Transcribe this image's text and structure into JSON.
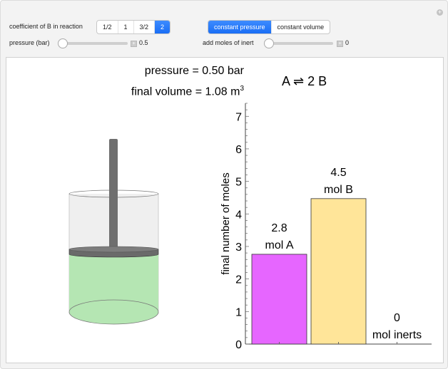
{
  "controls": {
    "coefficient_label": "coefficient of B in reaction",
    "coefficient_options": [
      "1/2",
      "1",
      "3/2",
      "2"
    ],
    "coefficient_selected": "2",
    "mode_options": [
      "constant pressure",
      "constant volume"
    ],
    "mode_selected": "constant pressure",
    "pressure_label": "pressure (bar)",
    "pressure_value": "0.5",
    "pressure_fraction": 0,
    "inert_label": "add moles of inert",
    "inert_value": "0",
    "inert_fraction": 0
  },
  "display": {
    "pressure_text": "pressure = 0.50 bar",
    "volume_text": "final volume = 1.08 m",
    "volume_exp": "3",
    "reaction": "A ⇌ 2 B"
  },
  "colors": {
    "accent": "#1a6ef5",
    "gas": "#b5e6b3",
    "barA": "#e666ff",
    "barB": "#ffe599"
  },
  "chart_data": {
    "type": "bar",
    "ylabel": "final number of moles",
    "ylim": [
      0,
      7.4
    ],
    "yticks": [
      "0",
      "1",
      "2",
      "3",
      "4",
      "5",
      "6",
      "7"
    ],
    "bars": [
      {
        "value": 2.76,
        "label_value": "2.8",
        "label_name": "mol A",
        "color": "#e666ff"
      },
      {
        "value": 4.47,
        "label_value": "4.5",
        "label_name": "mol B",
        "color": "#ffe599"
      },
      {
        "value": 0,
        "label_value": "0",
        "label_name": "mol inerts",
        "color": "#cccccc"
      }
    ]
  }
}
